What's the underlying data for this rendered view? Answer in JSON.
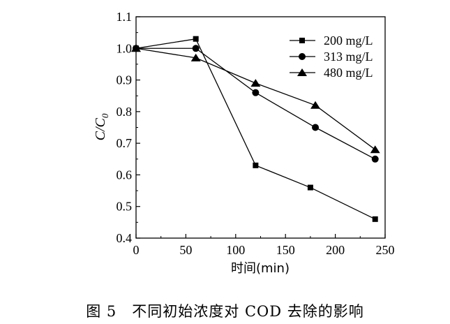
{
  "chart_data": {
    "type": "line",
    "caption": "图 5　不同初始浓度对 COD 去除的影响",
    "xlabel": "时间(min)",
    "ylabel": "C/C0",
    "ylabel_main": "C/C",
    "ylabel_sub": "0",
    "xlim": [
      0,
      250
    ],
    "ylim": [
      0.4,
      1.1
    ],
    "xticks": [
      "0",
      "50",
      "100",
      "150",
      "200",
      "250"
    ],
    "yticks": [
      "0.4",
      "0.5",
      "0.6",
      "0.7",
      "0.8",
      "0.9",
      "1.0",
      "1.1"
    ],
    "grid": false,
    "legend_position": "top-right",
    "series": [
      {
        "name": "200 mg/L",
        "marker": "square",
        "x": [
          0,
          60,
          120,
          175,
          240
        ],
        "y": [
          1.0,
          1.03,
          0.63,
          0.56,
          0.46
        ]
      },
      {
        "name": "313 mg/L",
        "marker": "circle",
        "x": [
          0,
          60,
          120,
          180,
          240
        ],
        "y": [
          1.0,
          1.0,
          0.86,
          0.75,
          0.65
        ]
      },
      {
        "name": "480 mg/L",
        "marker": "triangle",
        "x": [
          0,
          60,
          120,
          180,
          240
        ],
        "y": [
          1.0,
          0.97,
          0.89,
          0.82,
          0.68
        ]
      }
    ]
  }
}
